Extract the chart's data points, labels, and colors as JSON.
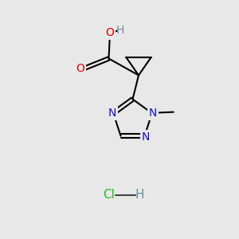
{
  "bg_color": "#e8e8e8",
  "bond_color": "#000000",
  "bond_width": 1.5,
  "atom_colors": {
    "C": "#000000",
    "H": "#6b8e9f",
    "O": "#dd0000",
    "N": "#1111cc",
    "Cl": "#22bb22"
  },
  "figsize": [
    3.0,
    3.0
  ],
  "dpi": 100
}
